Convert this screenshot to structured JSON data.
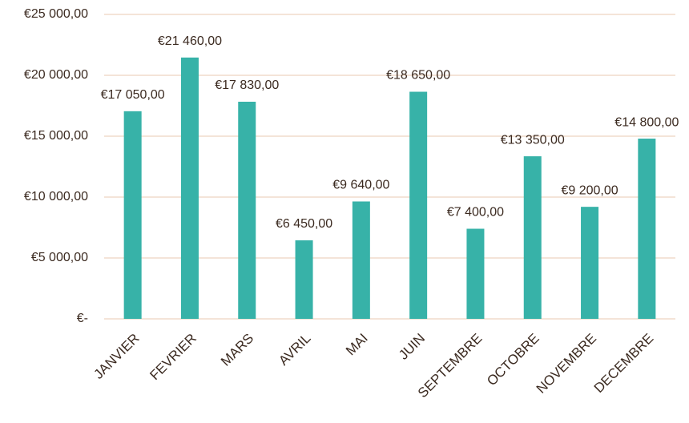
{
  "chart_data": {
    "type": "bar",
    "categories": [
      "JANVIER",
      "FEVRIER",
      "MARS",
      "AVRIL",
      "MAI",
      "JUIN",
      "SEPTEMBRE",
      "OCTOBRE",
      "NOVEMBRE",
      "DECEMBRE"
    ],
    "values": [
      17050,
      21460,
      17830,
      6450,
      9640,
      18650,
      7400,
      13350,
      9200,
      14800
    ],
    "value_labels": [
      "€17 050,00",
      "€21 460,00",
      "€17 830,00",
      "€6 450,00",
      "€9 640,00",
      "€18 650,00",
      "€7 400,00",
      "€13 350,00",
      "€9 200,00",
      "€14 800,00"
    ],
    "color": "#37b2a8",
    "ylim": [
      0,
      25000
    ],
    "yticks": [
      {
        "value": 0,
        "label": "€-"
      },
      {
        "value": 5000,
        "label": "€5 000,00"
      },
      {
        "value": 10000,
        "label": "€10 000,00"
      },
      {
        "value": 15000,
        "label": "€15 000,00"
      },
      {
        "value": 20000,
        "label": "€20 000,00"
      },
      {
        "value": 25000,
        "label": "€25 000,00"
      }
    ],
    "grid": true
  }
}
